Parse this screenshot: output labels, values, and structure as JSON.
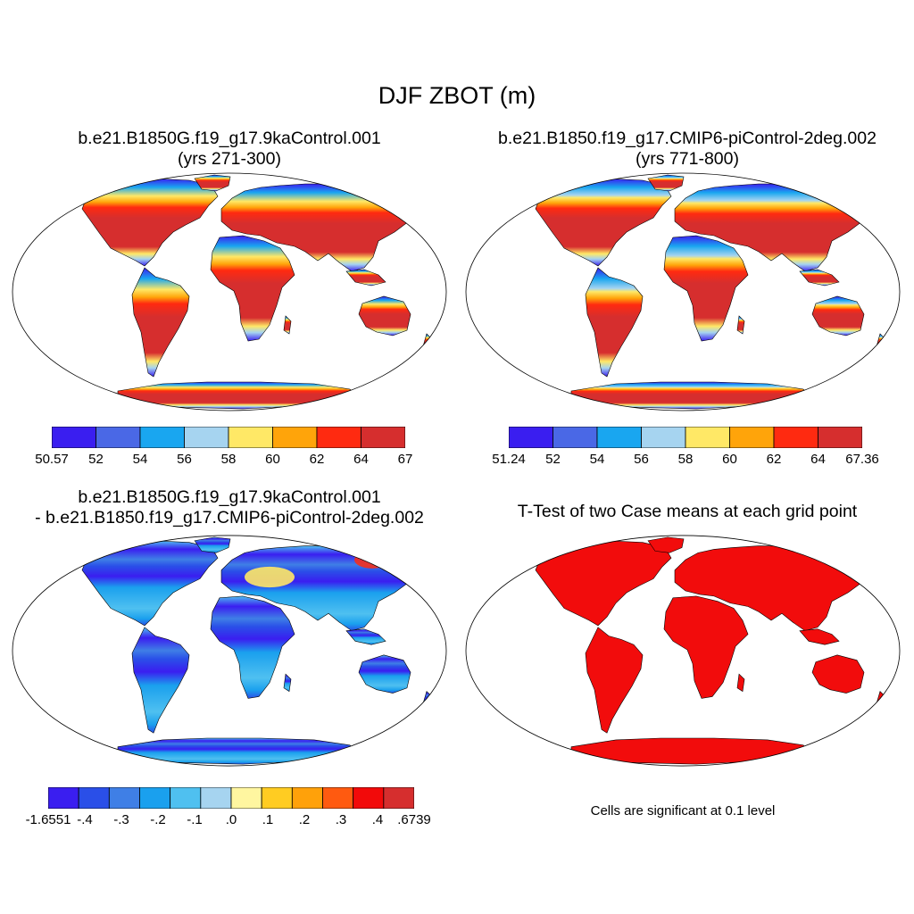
{
  "figure": {
    "title": "DJF ZBOT (m)",
    "panels": [
      {
        "id": "case1",
        "title_line1": "b.e21.B1850G.f19_g17.9kaControl.001",
        "title_line2": "(yrs 271-300)",
        "colorbar": {
          "colors": [
            "#3a1ef0",
            "#4a68e6",
            "#19a6f0",
            "#a6d4f0",
            "#ffe866",
            "#ffa40a",
            "#ff2a10",
            "#d62e2e"
          ],
          "labels": [
            "50.57",
            "52",
            "54",
            "56",
            "58",
            "60",
            "62",
            "64",
            "67"
          ]
        }
      },
      {
        "id": "case2",
        "title_line1": "b.e21.B1850.f19_g17.CMIP6-piControl-2deg.002",
        "title_line2": "(yrs 771-800)",
        "colorbar": {
          "colors": [
            "#3a1ef0",
            "#4a68e6",
            "#19a6f0",
            "#a6d4f0",
            "#ffe866",
            "#ffa40a",
            "#ff2a10",
            "#d62e2e"
          ],
          "labels": [
            "51.24",
            "52",
            "54",
            "56",
            "58",
            "60",
            "62",
            "64",
            "67.36"
          ]
        }
      },
      {
        "id": "diff",
        "title_line1": "b.e21.B1850G.f19_g17.9kaControl.001",
        "title_line2": "- b.e21.B1850.f19_g17.CMIP6-piControl-2deg.002",
        "colorbar": {
          "colors": [
            "#3a1ef0",
            "#2a4fe8",
            "#3f7fe6",
            "#1aa0ee",
            "#4fc0f0",
            "#a6d4f0",
            "#fff6a0",
            "#ffcc22",
            "#ffa10a",
            "#ff5a10",
            "#f20a0a",
            "#d62e2e"
          ],
          "labels": [
            "-1.6551",
            "-.4",
            "-.3",
            "-.2",
            "-.1",
            ".0",
            ".1",
            ".2",
            ".3",
            ".4",
            ".6739"
          ]
        }
      },
      {
        "id": "ttest",
        "title_line1": "T-Test of two Case means at each grid point",
        "note": "Cells are significant at 0.1 level",
        "fill_color": "#f20c0c"
      }
    ]
  },
  "icons": [
    "world-map-robinson-icon"
  ]
}
